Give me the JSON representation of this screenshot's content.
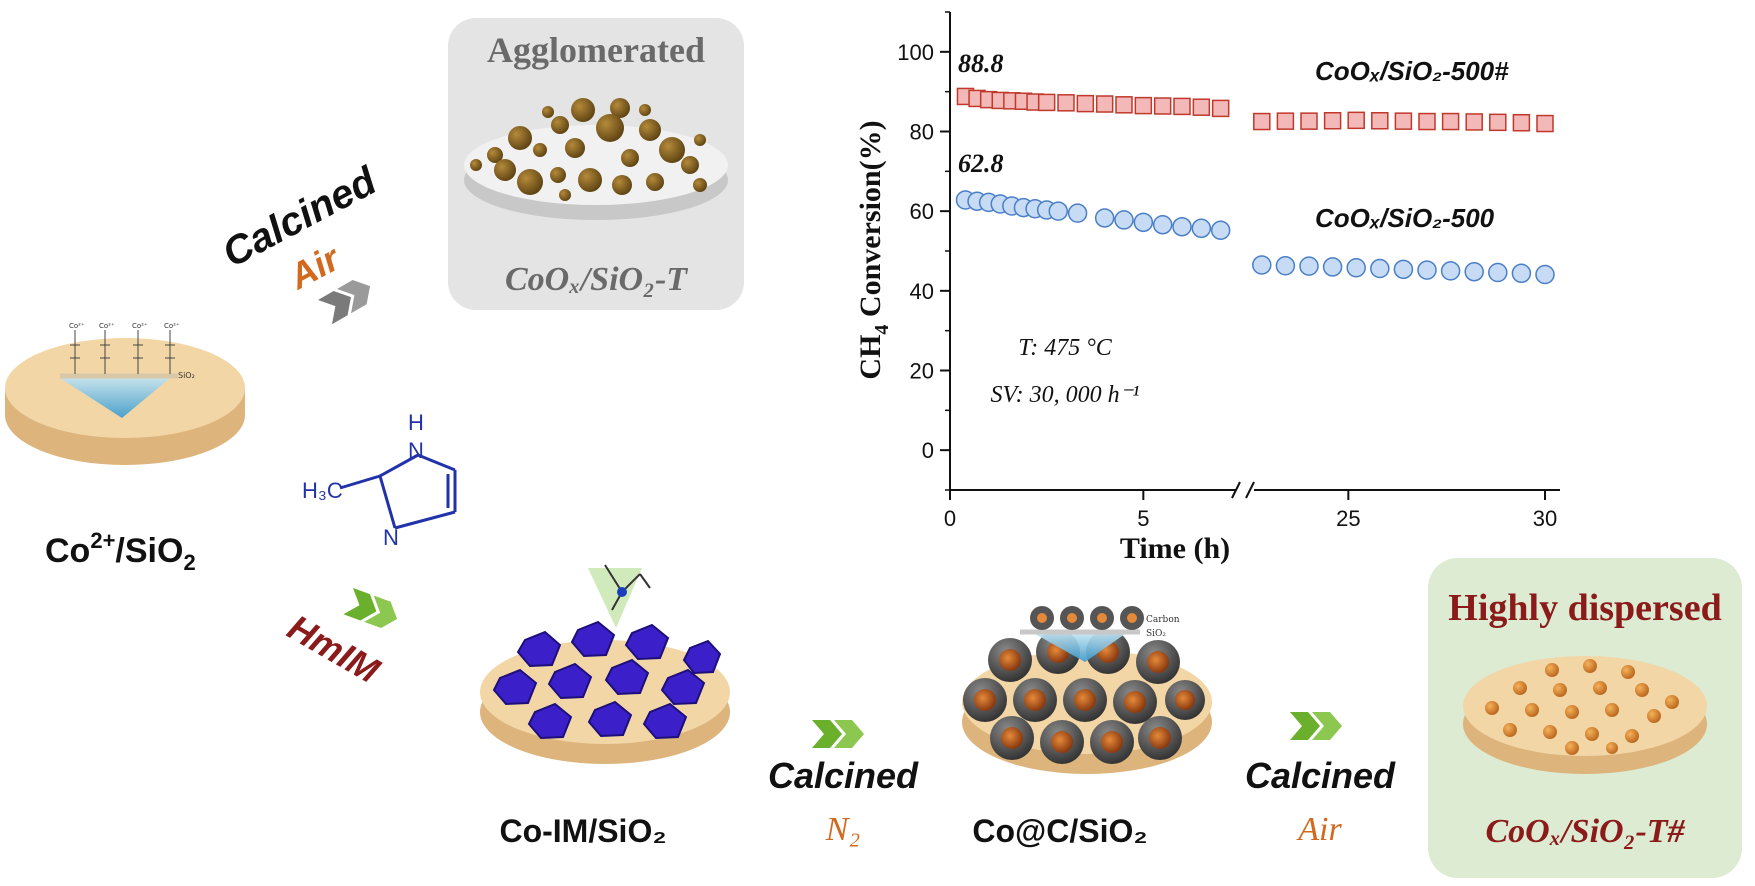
{
  "colors": {
    "accent_orange": "#d2691e",
    "dark_red": "#8b1a1a",
    "series_hash": "#c0392b",
    "series_plain": "#4a7fc8",
    "disc_top": "#f3d6a6",
    "disc_side": "#dcb47c",
    "panel_grey": "#e4e4e4",
    "panel_green": "#dcebd1",
    "arrow_green": "#6ab02c",
    "arrow_grey": "#7a7a7a",
    "zif_purple": "#3b1fc9"
  },
  "precursor": {
    "label_main": "Co",
    "label_charge": "2+",
    "label_rest": "/SiO",
    "label_sub": "2",
    "inset_label": "SiO₂",
    "inset_ion": "Co²⁺"
  },
  "top_path": {
    "step_word": "Calcined",
    "atmosphere": "Air",
    "panel_title": "Agglomerated",
    "product_label": "CoOₓ/SiO₂-T"
  },
  "bottom_path": {
    "ligand_word": "HmIM",
    "ligand_formula_methyl": "H₃C",
    "ligand_atom_nh": "H",
    "ligand_atom_n1": "N",
    "ligand_atom_n2": "N",
    "zif_label": "Co-IM/SiO₂",
    "step2_word": "Calcined",
    "step2_atmosphere": "N₂",
    "coc_label": "Co@C/SiO₂",
    "coc_inset_carbon": "Carbon",
    "coc_inset_sio2": "SiO₂",
    "step3_word": "Calcined",
    "step3_atmosphere": "Air",
    "dispersed_title": "Highly dispersed",
    "dispersed_label": "CoOₓ/SiO₂-T#"
  },
  "chart_data": {
    "type": "scatter",
    "title": "",
    "xlabel": "Time (h)",
    "ylabel": "CH₄ Conversion(%)",
    "ylim": [
      -10,
      110
    ],
    "y_ticks": [
      "0",
      "20",
      "40",
      "60",
      "80",
      "100"
    ],
    "x_ticks": [
      "0",
      "5",
      "25",
      "30"
    ],
    "x_break": "broken axis between 7.5 h and 22.5 h",
    "segments": [
      {
        "xlim": [
          0,
          7.5
        ]
      },
      {
        "xlim": [
          22.5,
          30
        ]
      }
    ],
    "conditions": [
      "T: 475 °C",
      "SV: 30, 000 h⁻¹"
    ],
    "series": [
      {
        "name": "CoOₓ/SiO₂-500#",
        "marker": "square",
        "start_label": "88.8",
        "x": [
          0.4,
          0.7,
          1.0,
          1.3,
          1.6,
          1.9,
          2.2,
          2.5,
          3.0,
          3.5,
          4.0,
          4.5,
          5.0,
          5.5,
          6.0,
          6.5,
          7.0,
          22.8,
          23.4,
          24.0,
          24.6,
          25.2,
          25.8,
          26.4,
          27.0,
          27.6,
          28.2,
          28.8,
          29.4,
          30.0
        ],
        "y": [
          88.8,
          88.3,
          88.0,
          87.8,
          87.7,
          87.6,
          87.4,
          87.3,
          87.2,
          87.0,
          86.9,
          86.7,
          86.5,
          86.4,
          86.3,
          86.1,
          85.8,
          82.5,
          82.6,
          82.6,
          82.7,
          82.8,
          82.7,
          82.6,
          82.5,
          82.5,
          82.4,
          82.3,
          82.2,
          82.0
        ]
      },
      {
        "name": "CoOₓ/SiO₂-500",
        "marker": "circle",
        "start_label": "62.8",
        "x": [
          0.4,
          0.7,
          1.0,
          1.3,
          1.6,
          1.9,
          2.2,
          2.5,
          2.8,
          3.3,
          4.0,
          4.5,
          5.0,
          5.5,
          6.0,
          6.5,
          7.0,
          22.8,
          23.4,
          24.0,
          24.6,
          25.2,
          25.8,
          26.4,
          27.0,
          27.6,
          28.2,
          28.8,
          29.4,
          30.0
        ],
        "y": [
          62.8,
          62.5,
          62.2,
          61.8,
          61.3,
          60.9,
          60.6,
          60.3,
          60.0,
          59.5,
          58.3,
          57.8,
          57.2,
          56.6,
          56.1,
          55.7,
          55.2,
          46.5,
          46.3,
          46.2,
          46.0,
          45.8,
          45.6,
          45.4,
          45.2,
          45.0,
          44.8,
          44.6,
          44.4,
          44.1
        ]
      }
    ]
  }
}
